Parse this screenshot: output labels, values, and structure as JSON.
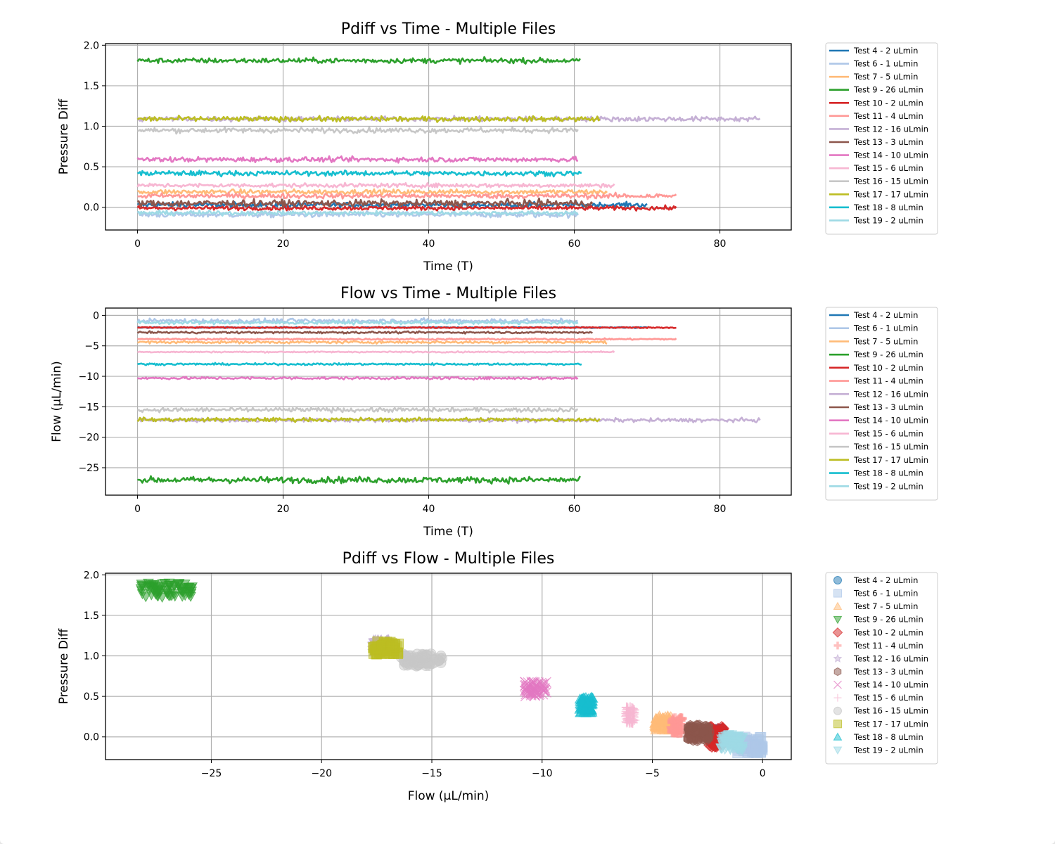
{
  "chart_data": [
    {
      "type": "line",
      "title": "Pdiff vs Time - Multiple Files",
      "xlabel": "Time (T)",
      "ylabel": "Pressure Diff",
      "xlim": [
        -4.4,
        89.8
      ],
      "ylim": [
        -0.28,
        2.02
      ],
      "xticks": [
        0,
        20,
        40,
        60,
        80
      ],
      "yticks": [
        0.0,
        0.5,
        1.0,
        1.5,
        2.0
      ],
      "ytick_labels": [
        "0.0",
        "0.5",
        "1.0",
        "1.5",
        "2.0"
      ],
      "grid": true,
      "legend": "outside-right",
      "series": [
        {
          "name": "Test 4 - 2 uLmin",
          "color": "#1f77b4",
          "x_range": [
            0,
            70
          ],
          "mean": 0.03,
          "noise": 0.03
        },
        {
          "name": "Test 6 - 1 uLmin",
          "color": "#aec7e8",
          "x_range": [
            0,
            60.5
          ],
          "mean": -0.09,
          "noise": 0.035
        },
        {
          "name": "Test 7 - 5 uLmin",
          "color": "#ffbb78",
          "x_range": [
            0,
            64.5
          ],
          "mean": 0.19,
          "noise": 0.03
        },
        {
          "name": "Test 9 - 26 uLmin",
          "color": "#2ca02c",
          "x_range": [
            0,
            60.8
          ],
          "mean": 1.81,
          "noise": 0.03
        },
        {
          "name": "Test 10 - 2 uLmin",
          "color": "#d62728",
          "x_range": [
            0,
            74
          ],
          "mean": -0.01,
          "noise": 0.025
        },
        {
          "name": "Test 11 - 4 uLmin",
          "color": "#ff9896",
          "x_range": [
            0,
            74
          ],
          "mean": 0.14,
          "noise": 0.03
        },
        {
          "name": "Test 12 - 16 uLmin",
          "color": "#c5b0d5",
          "x_range": [
            0,
            85.5
          ],
          "mean": 1.09,
          "noise": 0.03
        },
        {
          "name": "Test 13 - 3 uLmin",
          "color": "#8c564b",
          "x_range": [
            0,
            62.5
          ],
          "mean": 0.05,
          "noise": 0.04
        },
        {
          "name": "Test 14 - 10 uLmin",
          "color": "#e377c2",
          "x_range": [
            0,
            60.5
          ],
          "mean": 0.59,
          "noise": 0.03
        },
        {
          "name": "Test 15 - 6 uLmin",
          "color": "#f7b6d2",
          "x_range": [
            0,
            65.5
          ],
          "mean": 0.27,
          "noise": 0.025
        },
        {
          "name": "Test 16 - 15 uLmin",
          "color": "#c7c7c7",
          "x_range": [
            0,
            60.5
          ],
          "mean": 0.95,
          "noise": 0.03
        },
        {
          "name": "Test 17 - 17 uLmin",
          "color": "#bcbd22",
          "x_range": [
            0,
            63.5
          ],
          "mean": 1.09,
          "noise": 0.03
        },
        {
          "name": "Test 18 - 8 uLmin",
          "color": "#17becf",
          "x_range": [
            0,
            61
          ],
          "mean": 0.42,
          "noise": 0.03
        },
        {
          "name": "Test 19 - 2 uLmin",
          "color": "#9edae5",
          "x_range": [
            0,
            60.5
          ],
          "mean": -0.07,
          "noise": 0.025
        }
      ]
    },
    {
      "type": "line",
      "title": "Flow vs Time - Multiple Files",
      "xlabel": "Time (T)",
      "ylabel": "Flow (µL/min)",
      "xlim": [
        -4.4,
        89.8
      ],
      "ylim": [
        -29.5,
        1.2
      ],
      "xticks": [
        0,
        20,
        40,
        60,
        80
      ],
      "yticks": [
        0,
        -5,
        -10,
        -15,
        -20,
        -25
      ],
      "ytick_labels": [
        "0",
        "−5",
        "−10",
        "−15",
        "−20",
        "−25"
      ],
      "grid": true,
      "legend": "outside-right",
      "series": [
        {
          "name": "Test 4 - 2 uLmin",
          "color": "#1f77b4",
          "x_range": [
            0,
            70
          ],
          "mean": -2.0,
          "noise": 0.08
        },
        {
          "name": "Test 6 - 1 uLmin",
          "color": "#aec7e8",
          "x_range": [
            0,
            60.5
          ],
          "mean": -0.9,
          "noise": 0.35
        },
        {
          "name": "Test 7 - 5 uLmin",
          "color": "#ffbb78",
          "x_range": [
            0,
            64.5
          ],
          "mean": -4.4,
          "noise": 0.2
        },
        {
          "name": "Test 9 - 26 uLmin",
          "color": "#2ca02c",
          "x_range": [
            0,
            60.8
          ],
          "mean": -27.0,
          "noise": 0.5
        },
        {
          "name": "Test 10 - 2 uLmin",
          "color": "#d62728",
          "x_range": [
            0,
            74
          ],
          "mean": -2.0,
          "noise": 0.1
        },
        {
          "name": "Test 11 - 4 uLmin",
          "color": "#ff9896",
          "x_range": [
            0,
            74
          ],
          "mean": -3.9,
          "noise": 0.12
        },
        {
          "name": "Test 12 - 16 uLmin",
          "color": "#c5b0d5",
          "x_range": [
            0,
            85.5
          ],
          "mean": -17.2,
          "noise": 0.3
        },
        {
          "name": "Test 13 - 3 uLmin",
          "color": "#8c564b",
          "x_range": [
            0,
            62.5
          ],
          "mean": -2.8,
          "noise": 0.15
        },
        {
          "name": "Test 14 - 10 uLmin",
          "color": "#e377c2",
          "x_range": [
            0,
            60.5
          ],
          "mean": -10.3,
          "noise": 0.2
        },
        {
          "name": "Test 15 - 6 uLmin",
          "color": "#f7b6d2",
          "x_range": [
            0,
            65.5
          ],
          "mean": -6.0,
          "noise": 0.1
        },
        {
          "name": "Test 16 - 15 uLmin",
          "color": "#c7c7c7",
          "x_range": [
            0,
            60.5
          ],
          "mean": -15.5,
          "noise": 0.35
        },
        {
          "name": "Test 17 - 17 uLmin",
          "color": "#bcbd22",
          "x_range": [
            0,
            63.5
          ],
          "mean": -17.1,
          "noise": 0.3
        },
        {
          "name": "Test 18 - 8 uLmin",
          "color": "#17becf",
          "x_range": [
            0,
            61
          ],
          "mean": -8.0,
          "noise": 0.15
        },
        {
          "name": "Test 19 - 2 uLmin",
          "color": "#9edae5",
          "x_range": [
            0,
            60.5
          ],
          "mean": -1.2,
          "noise": 0.25
        }
      ]
    },
    {
      "type": "scatter",
      "title": "Pdiff vs Flow - Multiple Files",
      "xlabel": "Flow (µL/min)",
      "ylabel": "Pressure Diff",
      "xlim": [
        -29.8,
        1.3
      ],
      "ylim": [
        -0.28,
        2.02
      ],
      "xticks": [
        -25,
        -20,
        -15,
        -10,
        -5,
        0
      ],
      "xtick_labels": [
        "−25",
        "−20",
        "−15",
        "−10",
        "−5",
        "0"
      ],
      "yticks": [
        0.0,
        0.5,
        1.0,
        1.5,
        2.0
      ],
      "ytick_labels": [
        "0.0",
        "0.5",
        "1.0",
        "1.5",
        "2.0"
      ],
      "grid": true,
      "legend": "outside-right",
      "series": [
        {
          "name": "Test 4 - 2 uLmin",
          "color": "#1f77b4",
          "marker": "circle",
          "center": [
            -2.0,
            0.02
          ],
          "spread": [
            0.2,
            0.08
          ]
        },
        {
          "name": "Test 6 - 1 uLmin",
          "color": "#aec7e8",
          "marker": "square",
          "center": [
            -0.6,
            -0.1
          ],
          "spread": [
            0.6,
            0.1
          ]
        },
        {
          "name": "Test 7 - 5 uLmin",
          "color": "#ffbb78",
          "marker": "triangle-up",
          "center": [
            -4.5,
            0.17
          ],
          "spread": [
            0.4,
            0.09
          ]
        },
        {
          "name": "Test 9 - 26 uLmin",
          "color": "#2ca02c",
          "marker": "triangle-down",
          "center": [
            -27.0,
            1.81
          ],
          "spread": [
            1.2,
            0.09
          ]
        },
        {
          "name": "Test 10 - 2 uLmin",
          "color": "#d62728",
          "marker": "diamond",
          "center": [
            -2.1,
            0.0
          ],
          "spread": [
            0.3,
            0.12
          ]
        },
        {
          "name": "Test 11 - 4 uLmin",
          "color": "#ff9896",
          "marker": "plus",
          "center": [
            -3.9,
            0.14
          ],
          "spread": [
            0.25,
            0.1
          ]
        },
        {
          "name": "Test 12 - 16 uLmin",
          "color": "#c5b0d5",
          "marker": "star",
          "center": [
            -17.3,
            1.12
          ],
          "spread": [
            0.4,
            0.08
          ]
        },
        {
          "name": "Test 13 - 3 uLmin",
          "color": "#8c564b",
          "marker": "hexagon",
          "center": [
            -2.9,
            0.05
          ],
          "spread": [
            0.5,
            0.1
          ]
        },
        {
          "name": "Test 14 - 10 uLmin",
          "color": "#e377c2",
          "marker": "x",
          "center": [
            -10.3,
            0.59
          ],
          "spread": [
            0.5,
            0.09
          ]
        },
        {
          "name": "Test 15 - 6 uLmin",
          "color": "#f7b6d2",
          "marker": "plus-thin",
          "center": [
            -6.0,
            0.27
          ],
          "spread": [
            0.2,
            0.1
          ]
        },
        {
          "name": "Test 16 - 15 uLmin",
          "color": "#c7c7c7",
          "marker": "circle",
          "center": [
            -15.5,
            0.95
          ],
          "spread": [
            1.0,
            0.08
          ]
        },
        {
          "name": "Test 17 - 17 uLmin",
          "color": "#bcbd22",
          "marker": "square",
          "center": [
            -17.1,
            1.1
          ],
          "spread": [
            0.6,
            0.08
          ]
        },
        {
          "name": "Test 18 - 8 uLmin",
          "color": "#17becf",
          "marker": "triangle-up",
          "center": [
            -8.0,
            0.39
          ],
          "spread": [
            0.3,
            0.1
          ]
        },
        {
          "name": "Test 19 - 2 uLmin",
          "color": "#9edae5",
          "marker": "triangle-down",
          "center": [
            -1.4,
            -0.07
          ],
          "spread": [
            0.5,
            0.1
          ]
        }
      ]
    }
  ]
}
